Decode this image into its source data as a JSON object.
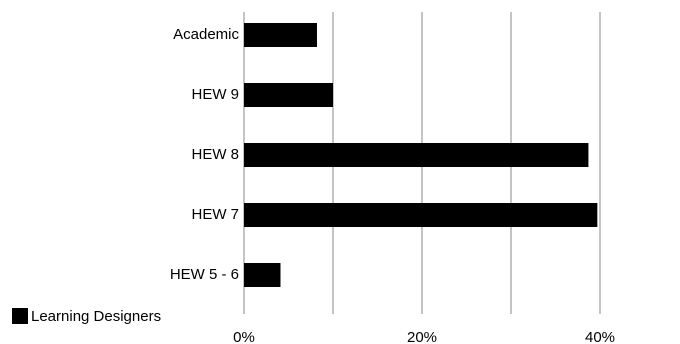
{
  "chart_data": {
    "type": "bar",
    "orientation": "horizontal",
    "categories": [
      "Academic",
      "HEW 9",
      "HEW 8",
      "HEW 7",
      "HEW 5 - 6"
    ],
    "series": [
      {
        "name": "Learning Designers",
        "values": [
          8.2,
          10.0,
          38.7,
          39.7,
          4.1
        ],
        "color": "#000000"
      }
    ],
    "xlim": [
      0,
      40
    ],
    "xticks": [
      0,
      20,
      40
    ],
    "xtick_labels": [
      "0%",
      "20%",
      "40%"
    ],
    "grid_values": [
      0,
      10,
      20,
      30,
      40
    ],
    "grid": true,
    "legend_position": "bottom-left"
  }
}
